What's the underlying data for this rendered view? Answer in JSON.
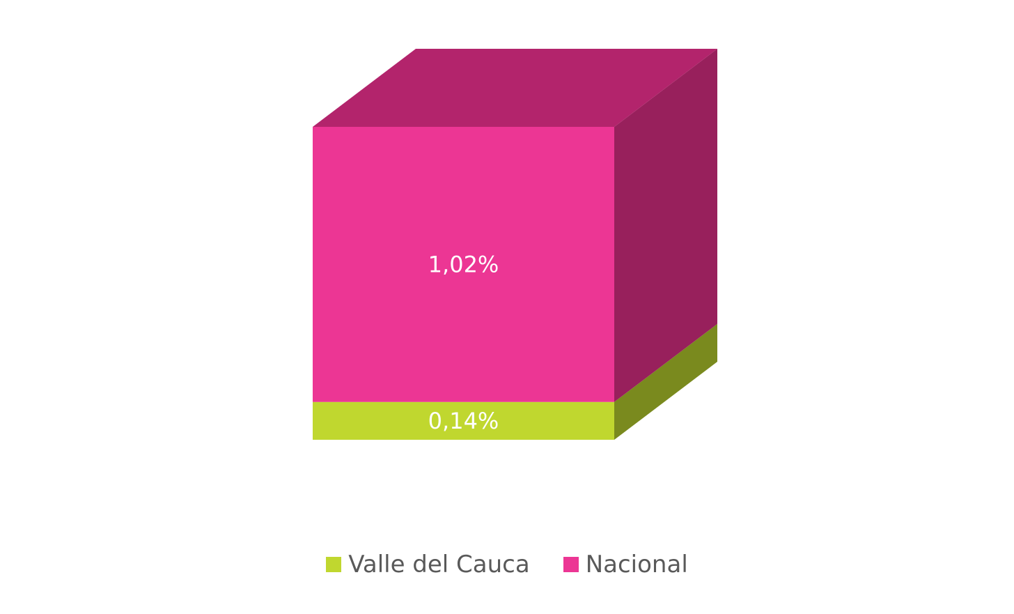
{
  "chart_data": {
    "type": "bar",
    "stacked": true,
    "three_d": true,
    "categories": [
      ""
    ],
    "series": [
      {
        "name": "Valle del Cauca",
        "values": [
          0.14
        ],
        "label": "0,14%",
        "color": "#C0D72F",
        "side_color": "#7A8A1E",
        "top_color": "#9AAD24"
      },
      {
        "name": "Nacional",
        "values": [
          1.02
        ],
        "label": "1,02%",
        "color": "#EC3694",
        "side_color": "#98205C",
        "top_color": "#B3246C"
      }
    ],
    "unit": "%",
    "legend_position": "bottom",
    "grid": false,
    "axes_visible": false,
    "data_label_color": "#FFFFFF"
  },
  "legend": {
    "items": [
      {
        "label": "Valle del Cauca",
        "color": "#C0D72F"
      },
      {
        "label": "Nacional",
        "color": "#EC3694"
      }
    ]
  }
}
